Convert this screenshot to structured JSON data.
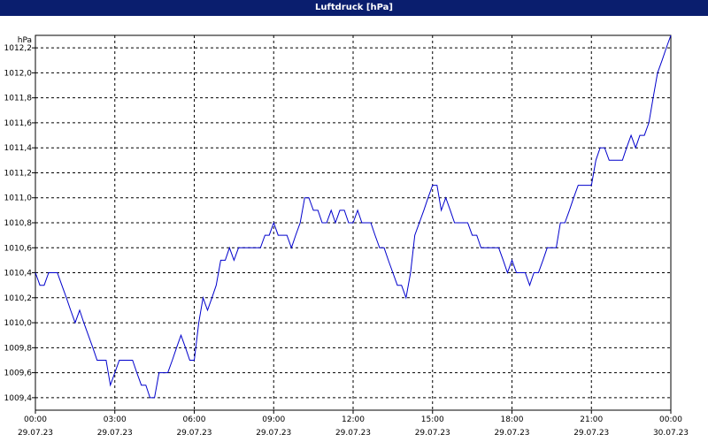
{
  "window": {
    "title": "Luftdruck [hPa]"
  },
  "chart_data": {
    "type": "line",
    "title": "Luftdruck [hPa]",
    "ylabel": "hPa",
    "xlabel": "",
    "ylim": [
      1009.3,
      1012.3
    ],
    "xlim_hours": [
      0,
      24
    ],
    "grid": true,
    "colors": {
      "line": "#0000cc",
      "grid": "#000000",
      "axis": "#000000",
      "title_bg": "#0a1e6e"
    },
    "y_ticks": [
      "1009,4",
      "1009,6",
      "1009,8",
      "1010,0",
      "1010,2",
      "1010,4",
      "1010,6",
      "1010,8",
      "1011,0",
      "1011,2",
      "1011,4",
      "1011,6",
      "1011,8",
      "1012,0",
      "1012,2"
    ],
    "x_ticks": [
      {
        "time": "00:00",
        "date": "29.07.23"
      },
      {
        "time": "03:00",
        "date": "29.07.23"
      },
      {
        "time": "06:00",
        "date": "29.07.23"
      },
      {
        "time": "09:00",
        "date": "29.07.23"
      },
      {
        "time": "12:00",
        "date": "29.07.23"
      },
      {
        "time": "15:00",
        "date": "29.07.23"
      },
      {
        "time": "18:00",
        "date": "29.07.23"
      },
      {
        "time": "21:00",
        "date": "29.07.23"
      },
      {
        "time": "00:00",
        "date": "30.07.23"
      }
    ],
    "series": [
      {
        "x": [
          0,
          0.17,
          0.33,
          0.5,
          0.67,
          0.83,
          1,
          1.17,
          1.33,
          1.5,
          1.67,
          1.83,
          2,
          2.17,
          2.33,
          2.5,
          2.67,
          2.83,
          3,
          3.17,
          3.33,
          3.5,
          3.67,
          3.83,
          4,
          4.17,
          4.33,
          4.5,
          4.67,
          4.83,
          5,
          5.17,
          5.33,
          5.5,
          5.67,
          5.83,
          6,
          6.17,
          6.33,
          6.5,
          6.67,
          6.83,
          7,
          7.17,
          7.33,
          7.5,
          7.67,
          7.83,
          8,
          8.17,
          8.33,
          8.5,
          8.67,
          8.83,
          9,
          9.17,
          9.33,
          9.5,
          9.67,
          9.83,
          10,
          10.17,
          10.33,
          10.5,
          10.67,
          10.83,
          11,
          11.17,
          11.33,
          11.5,
          11.67,
          11.83,
          12,
          12.17,
          12.33,
          12.5,
          12.67,
          12.83,
          13,
          13.17,
          13.33,
          13.5,
          13.67,
          13.83,
          14,
          14.17,
          14.33,
          14.5,
          14.67,
          14.83,
          15,
          15.17,
          15.33,
          15.5,
          15.67,
          15.83,
          16,
          16.17,
          16.33,
          16.5,
          16.67,
          16.83,
          17,
          17.17,
          17.33,
          17.5,
          17.67,
          17.83,
          18,
          18.17,
          18.33,
          18.5,
          18.67,
          18.83,
          19,
          19.17,
          19.33,
          19.5,
          19.67,
          19.83,
          20,
          20.17,
          20.33,
          20.5,
          20.67,
          20.83,
          21,
          21.17,
          21.33,
          21.5,
          21.67,
          21.83,
          22,
          22.17,
          22.33,
          22.5,
          22.67,
          22.83,
          23,
          23.17,
          23.33,
          23.5,
          23.67,
          23.83,
          24
        ],
        "y": [
          1010.4,
          1010.3,
          1010.3,
          1010.4,
          1010.4,
          1010.4,
          1010.3,
          1010.2,
          1010.1,
          1010.0,
          1010.1,
          1010.0,
          1009.9,
          1009.8,
          1009.7,
          1009.7,
          1009.7,
          1009.5,
          1009.6,
          1009.7,
          1009.7,
          1009.7,
          1009.7,
          1009.6,
          1009.5,
          1009.5,
          1009.4,
          1009.4,
          1009.6,
          1009.6,
          1009.6,
          1009.7,
          1009.8,
          1009.9,
          1009.8,
          1009.7,
          1009.7,
          1010.0,
          1010.2,
          1010.1,
          1010.2,
          1010.3,
          1010.5,
          1010.5,
          1010.6,
          1010.5,
          1010.6,
          1010.6,
          1010.6,
          1010.6,
          1010.6,
          1010.6,
          1010.7,
          1010.7,
          1010.8,
          1010.7,
          1010.7,
          1010.7,
          1010.6,
          1010.7,
          1010.8,
          1011.0,
          1011.0,
          1010.9,
          1010.9,
          1010.8,
          1010.8,
          1010.9,
          1010.8,
          1010.9,
          1010.9,
          1010.8,
          1010.8,
          1010.9,
          1010.8,
          1010.8,
          1010.8,
          1010.7,
          1010.6,
          1010.6,
          1010.5,
          1010.4,
          1010.3,
          1010.3,
          1010.2,
          1010.4,
          1010.7,
          1010.8,
          1010.9,
          1011.0,
          1011.1,
          1011.1,
          1010.9,
          1011.0,
          1010.9,
          1010.8,
          1010.8,
          1010.8,
          1010.8,
          1010.7,
          1010.7,
          1010.6,
          1010.6,
          1010.6,
          1010.6,
          1010.6,
          1010.5,
          1010.4,
          1010.5,
          1010.4,
          1010.4,
          1010.4,
          1010.3,
          1010.4,
          1010.4,
          1010.5,
          1010.6,
          1010.6,
          1010.6,
          1010.8,
          1010.8,
          1010.9,
          1011.0,
          1011.1,
          1011.1,
          1011.1,
          1011.1,
          1011.3,
          1011.4,
          1011.4,
          1011.3,
          1011.3,
          1011.3,
          1011.3,
          1011.4,
          1011.5,
          1011.4,
          1011.5,
          1011.5,
          1011.6,
          1011.8,
          1012.0,
          1012.1,
          1012.2,
          1012.3
        ]
      }
    ]
  }
}
